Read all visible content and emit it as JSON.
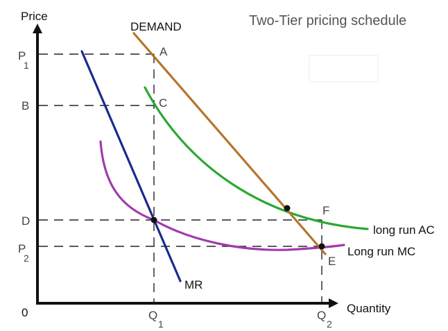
{
  "title": "Two-Tier pricing schedule",
  "axes": {
    "y_label": "Price",
    "x_label": "Quantity",
    "origin_label": "0"
  },
  "price_levels": [
    {
      "id": "p1",
      "label": "P",
      "sub": "1"
    },
    {
      "id": "b",
      "label": "B",
      "sub": ""
    },
    {
      "id": "d",
      "label": "D",
      "sub": ""
    },
    {
      "id": "p2",
      "label": "P",
      "sub": "2"
    }
  ],
  "quantity_levels": [
    {
      "id": "q1",
      "label": "Q",
      "sub": "1"
    },
    {
      "id": "q2",
      "label": "Q",
      "sub": "2"
    }
  ],
  "point_labels": {
    "a": "A",
    "c": "C",
    "f": "F",
    "e": "E"
  },
  "curves": {
    "demand": {
      "label": "DEMAND",
      "color": "#b5752a"
    },
    "mr": {
      "label": "MR",
      "color": "#1b2a8f"
    },
    "ac": {
      "label": "long run AC",
      "color": "#2aa832"
    },
    "mc": {
      "label": "Long run MC",
      "color": "#a23aad"
    }
  },
  "colors": {
    "axis": "#111111",
    "guide": "#222222",
    "point": "#111111"
  }
}
